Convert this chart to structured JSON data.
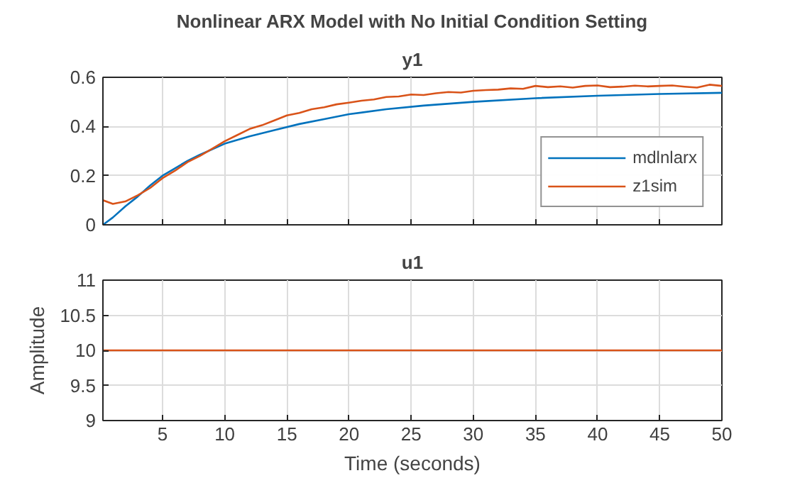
{
  "chart_data": [
    {
      "type": "line",
      "title": "Nonlinear ARX Model with No Initial Condition Setting",
      "subtitle": "y1",
      "xlim": [
        0.2,
        50
      ],
      "xticks": [
        5,
        10,
        15,
        20,
        25,
        30,
        35,
        40,
        45,
        50
      ],
      "ylim": [
        0,
        0.6
      ],
      "yticks": [
        0,
        0.2,
        0.4,
        0.6
      ],
      "grid": true,
      "legend": "bottom right",
      "tick_labels": "y",
      "series": [
        {
          "name": "mdlnlarx",
          "color": "#0072bd",
          "x": [
            0.2,
            1,
            2,
            3,
            4,
            5,
            6,
            7,
            8,
            10,
            12,
            14,
            16,
            18,
            20,
            23,
            26,
            30,
            35,
            40,
            45,
            50
          ],
          "values": [
            0,
            0.03,
            0.075,
            0.115,
            0.16,
            0.2,
            0.23,
            0.26,
            0.285,
            0.33,
            0.36,
            0.385,
            0.41,
            0.43,
            0.45,
            0.47,
            0.485,
            0.5,
            0.515,
            0.525,
            0.532,
            0.537
          ]
        },
        {
          "name": "z1sim",
          "color": "#d95319",
          "x": [
            0.2,
            1,
            2,
            3,
            4,
            5,
            6,
            7,
            8,
            9,
            10,
            11,
            12,
            13,
            14,
            15,
            16,
            17,
            18,
            19,
            20,
            21,
            22,
            23,
            24,
            25,
            26,
            27,
            28,
            29,
            30,
            31,
            32,
            33,
            34,
            35,
            36,
            37,
            38,
            39,
            40,
            41,
            42,
            43,
            44,
            45,
            46,
            47,
            48,
            49,
            50
          ],
          "values": [
            0.1,
            0.085,
            0.095,
            0.12,
            0.15,
            0.19,
            0.22,
            0.255,
            0.28,
            0.31,
            0.34,
            0.365,
            0.39,
            0.405,
            0.425,
            0.445,
            0.455,
            0.47,
            0.478,
            0.49,
            0.497,
            0.505,
            0.51,
            0.52,
            0.522,
            0.53,
            0.528,
            0.535,
            0.54,
            0.538,
            0.545,
            0.548,
            0.55,
            0.555,
            0.553,
            0.565,
            0.56,
            0.563,
            0.558,
            0.565,
            0.567,
            0.56,
            0.562,
            0.566,
            0.563,
            0.565,
            0.567,
            0.562,
            0.558,
            0.57,
            0.565
          ]
        }
      ]
    },
    {
      "type": "line",
      "title": "u1",
      "xlabel": "Time (seconds)",
      "ylabel": "Amplitude",
      "xlim": [
        0.2,
        50
      ],
      "xticks": [
        5,
        10,
        15,
        20,
        25,
        30,
        35,
        40,
        45,
        50
      ],
      "ylim": [
        9,
        11
      ],
      "yticks": [
        9,
        9.5,
        10,
        10.5,
        11
      ],
      "grid": true,
      "series": [
        {
          "color": "#d95319",
          "x": [
            0.2,
            50
          ],
          "values": [
            10,
            10
          ]
        }
      ]
    }
  ]
}
